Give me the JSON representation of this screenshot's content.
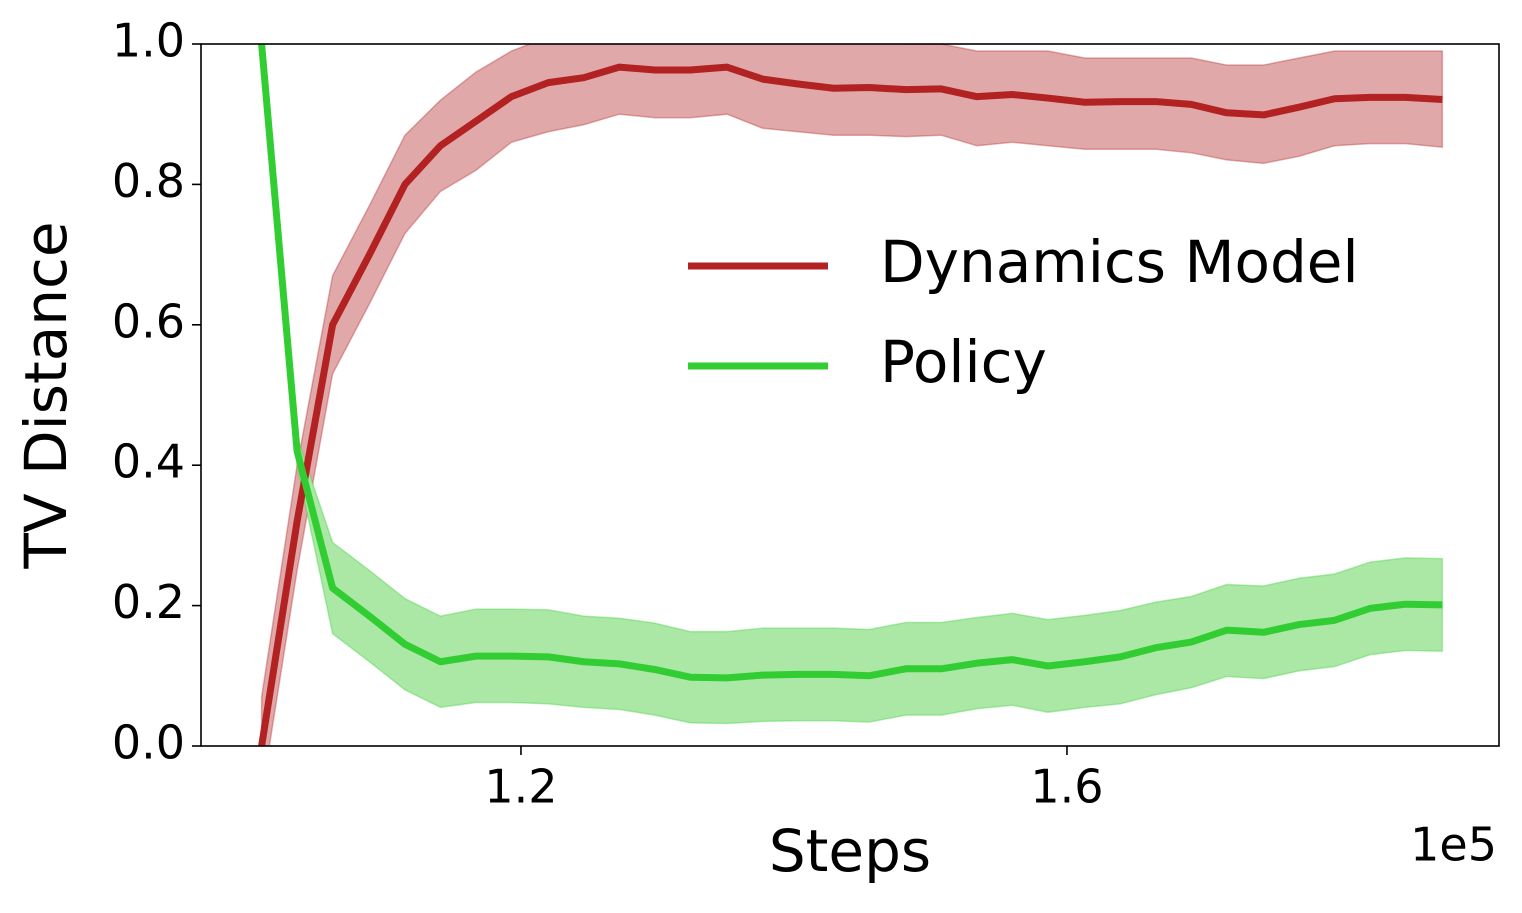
{
  "chart_data": {
    "type": "line",
    "xlabel": "Steps",
    "ylabel": "TV Distance",
    "x_offset_label": "1e5",
    "x": [
      1.01,
      1.036,
      1.062,
      1.089,
      1.115,
      1.141,
      1.167,
      1.193,
      1.22,
      1.246,
      1.272,
      1.298,
      1.324,
      1.351,
      1.377,
      1.403,
      1.429,
      1.455,
      1.482,
      1.508,
      1.534,
      1.56,
      1.586,
      1.613,
      1.639,
      1.665,
      1.691,
      1.717,
      1.744,
      1.77,
      1.796,
      1.822,
      1.848,
      1.875
    ],
    "series": [
      {
        "name": "Dynamics Model",
        "color": "#b22222",
        "band_color": "#e0a8a8",
        "values": [
          0.0,
          0.32,
          0.6,
          0.7,
          0.8,
          0.855,
          0.89,
          0.925,
          0.945,
          0.952,
          0.967,
          0.963,
          0.963,
          0.967,
          0.95,
          0.943,
          0.937,
          0.938,
          0.935,
          0.936,
          0.925,
          0.928,
          0.923,
          0.917,
          0.918,
          0.918,
          0.914,
          0.902,
          0.899,
          0.91,
          0.922,
          0.924,
          0.924,
          0.921
        ],
        "upper": [
          0.07,
          0.4,
          0.67,
          0.77,
          0.87,
          0.92,
          0.96,
          0.99,
          1.01,
          1.01,
          1.02,
          1.02,
          1.02,
          1.02,
          1.02,
          1.01,
          1.01,
          1.01,
          1.0,
          1.0,
          0.99,
          0.99,
          0.99,
          0.98,
          0.98,
          0.98,
          0.98,
          0.97,
          0.97,
          0.98,
          0.99,
          0.99,
          0.99,
          0.99
        ],
        "lower": [
          -0.07,
          0.25,
          0.53,
          0.63,
          0.73,
          0.79,
          0.82,
          0.86,
          0.875,
          0.885,
          0.9,
          0.895,
          0.895,
          0.9,
          0.88,
          0.875,
          0.87,
          0.87,
          0.868,
          0.87,
          0.855,
          0.86,
          0.855,
          0.85,
          0.85,
          0.85,
          0.845,
          0.835,
          0.83,
          0.84,
          0.855,
          0.858,
          0.858,
          0.853
        ]
      },
      {
        "name": "Policy",
        "color": "#32cd32",
        "band_color": "#abe8a6",
        "values": [
          1.0,
          0.42,
          0.225,
          0.185,
          0.145,
          0.12,
          0.128,
          0.128,
          0.127,
          0.12,
          0.117,
          0.109,
          0.098,
          0.097,
          0.101,
          0.102,
          0.102,
          0.1,
          0.11,
          0.11,
          0.118,
          0.123,
          0.114,
          0.12,
          0.127,
          0.14,
          0.148,
          0.165,
          0.162,
          0.173,
          0.179,
          0.196,
          0.202,
          0.201
        ],
        "upper": [
          1.0,
          0.44,
          0.29,
          0.25,
          0.21,
          0.185,
          0.195,
          0.195,
          0.194,
          0.185,
          0.182,
          0.175,
          0.163,
          0.163,
          0.168,
          0.168,
          0.168,
          0.166,
          0.176,
          0.176,
          0.183,
          0.189,
          0.18,
          0.186,
          0.193,
          0.205,
          0.213,
          0.23,
          0.228,
          0.239,
          0.245,
          0.262,
          0.268,
          0.267
        ],
        "lower": [
          1.0,
          0.4,
          0.16,
          0.12,
          0.08,
          0.055,
          0.062,
          0.062,
          0.06,
          0.055,
          0.052,
          0.044,
          0.033,
          0.032,
          0.035,
          0.036,
          0.036,
          0.034,
          0.044,
          0.044,
          0.053,
          0.058,
          0.048,
          0.055,
          0.06,
          0.073,
          0.083,
          0.099,
          0.096,
          0.107,
          0.113,
          0.13,
          0.136,
          0.135
        ]
      }
    ],
    "xlim": [
      0.9656,
      1.9165
    ],
    "xticks": [
      1.2,
      1.6
    ],
    "ylim": [
      0,
      1
    ],
    "yticks": [
      {
        "value": 0,
        "label": "0.0"
      },
      0.2,
      0.4,
      0.6,
      0.8,
      {
        "value": 1,
        "label": "1.0"
      }
    ],
    "grid": false,
    "legend": "center right"
  }
}
